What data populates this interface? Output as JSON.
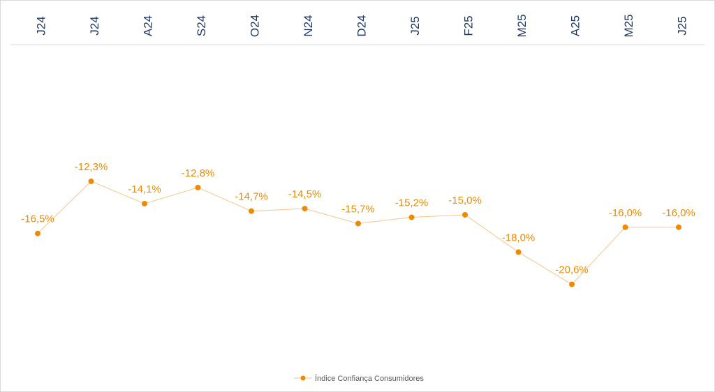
{
  "chart_data": {
    "type": "line",
    "title": "",
    "xlabel": "",
    "ylabel": "",
    "categories": [
      "J24",
      "J24",
      "A24",
      "S24",
      "O24",
      "N24",
      "D24",
      "J25",
      "F25",
      "M25",
      "A25",
      "M25",
      "J25"
    ],
    "series": [
      {
        "name": "Índice Confiança Consumidores",
        "color": "#ed8b00",
        "values": [
          -16.5,
          -12.3,
          -14.1,
          -12.8,
          -14.7,
          -14.5,
          -15.7,
          -15.2,
          -15.0,
          -18.0,
          -20.6,
          -16.0,
          -16.0
        ],
        "labels": [
          "-16,5%",
          "-12,3%",
          "-14,1%",
          "-12,8%",
          "-14,7%",
          "-14,5%",
          "-15,7%",
          "-15,2%",
          "-15,0%",
          "-18,0%",
          "-20,6%",
          "-16,0%",
          "-16,0%"
        ]
      }
    ],
    "ylim": [
      -36,
      0
    ],
    "grid": false,
    "x_axis_position": "top",
    "legend_position": "bottom"
  }
}
